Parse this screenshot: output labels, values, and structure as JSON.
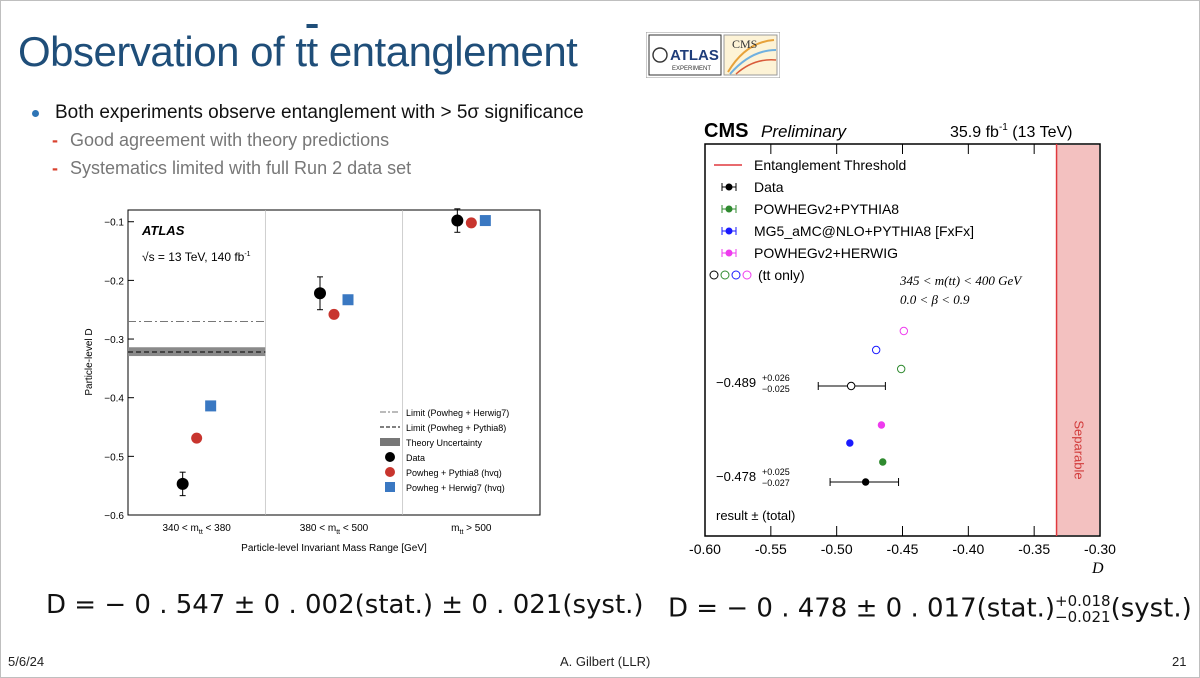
{
  "slide": {
    "title_pre": "Observation of t",
    "title_bar": "t",
    "title_post": " entanglement",
    "logo_left": "ATLAS",
    "logo_left_sub": "EXPERIMENT",
    "logo_right": "CMS",
    "bullet": "Both experiments observe entanglement with > 5σ significance",
    "subbullets": [
      "Good agreement with theory predictions",
      "Systematics limited with full Run 2 data set"
    ],
    "eq_left": "D = − 0 . 547 ± 0 . 002(stat.) ± 0 . 021(syst.)",
    "eq_right_main": "D = − 0 . 478 ± 0 . 017(stat.)",
    "eq_right_up": "+0.018",
    "eq_right_down": "−0.021",
    "eq_right_tail": "(syst.)",
    "footer_left": "5/6/24",
    "footer_center": "A. Gilbert (LLR)",
    "footer_right": "21"
  },
  "chart_data": [
    {
      "type": "scatter",
      "experiment": "ATLAS",
      "label": "ATLAS",
      "energy": "√s = 13 TeV, 140 fb",
      "energy_sup": "-1",
      "xlabel": "Particle-level Invariant Mass Range [GeV]",
      "ylabel": "Particle-level D",
      "categories": [
        "340 < m_tt < 380",
        "380 < m_tt < 500",
        "m_tt > 500"
      ],
      "ylim": [
        -0.6,
        -0.08
      ],
      "yticks": [
        "−0.1",
        "−0.2",
        "−0.3",
        "−0.4",
        "−0.5",
        "−0.6"
      ],
      "series": [
        {
          "name": "Data",
          "color": "#000000",
          "marker": "circle",
          "values": [
            -0.547,
            -0.222,
            -0.098
          ],
          "errors": [
            0.02,
            0.028,
            0.02
          ]
        },
        {
          "name": "Powheg + Pythia8 (hvq)",
          "color": "#c8352e",
          "marker": "circle",
          "values": [
            -0.469,
            -0.258,
            -0.102
          ]
        },
        {
          "name": "Powheg + Herwig7 (hvq)",
          "color": "#3a78c2",
          "marker": "square",
          "values": [
            -0.414,
            -0.233,
            -0.098
          ]
        }
      ],
      "limits": [
        {
          "name": "Limit (Powheg + Herwig7)",
          "style": "dashdot",
          "value": -0.27
        },
        {
          "name": "Limit (Powheg + Pythia8)",
          "style": "dashed",
          "value": -0.322
        }
      ],
      "theory_band": {
        "name": "Theory Uncertainty",
        "low": -0.329,
        "high": -0.314
      },
      "legend_labels": [
        "Limit (Powheg + Herwig7)",
        "Limit (Powheg + Pythia8)",
        "Theory Uncertainty",
        "Data",
        "Powheg + Pythia8 (hvq)",
        "Powheg + Herwig7 (hvq)"
      ],
      "tick_labels_m": [
        "340 < m",
        "tt",
        " < 380",
        "380 < m",
        "tt",
        " < 500",
        "m",
        "tt",
        " > 500"
      ]
    },
    {
      "type": "scatter",
      "experiment": "CMS",
      "label": "CMS",
      "label_sub": "Preliminary",
      "lumi": "35.9 fb",
      "lumi_sup": "-1",
      "lumi_tail": " (13 TeV)",
      "xlabel": "D",
      "xlim": [
        -0.6,
        -0.3
      ],
      "xticks": [
        "-0.60",
        "-0.55",
        "-0.50",
        "-0.45",
        "-0.40",
        "-0.35",
        "-0.30"
      ],
      "xtick_values": [
        -0.6,
        -0.55,
        -0.5,
        -0.45,
        -0.4,
        -0.35,
        -0.3
      ],
      "threshold": {
        "name": "Entanglement Threshold",
        "value": -0.333,
        "region_label": "Separable"
      },
      "legend": [
        {
          "name": "Entanglement Threshold",
          "color": "#e0393e"
        },
        {
          "name": "Data",
          "color": "#000000"
        },
        {
          "name": "POWHEGv2+PYTHIA8",
          "color": "#2f8a2f"
        },
        {
          "name": "MG5_aMC@NLO+PYTHIA8 [FxFx]",
          "color": "#1a1aff"
        },
        {
          "name": "POWHEGv2+HERWIG",
          "color": "#ee3bee"
        }
      ],
      "open_marker_note": "(tt only)",
      "selection": [
        "345 < m(tt) < 400 GeV",
        "0.0 < β < 0.9"
      ],
      "result_label": "result ± (total)",
      "group_open": {
        "data": {
          "value": -0.489,
          "up": 0.026,
          "down": 0.025,
          "text": "−0.489",
          "up_text": "+0.026",
          "down_text": "−0.025"
        },
        "mc": [
          {
            "name": "POWHEGv2+HERWIG",
            "value": -0.449
          },
          {
            "name": "MG5_aMC@NLO+PYTHIA8 [FxFx]",
            "value": -0.47
          },
          {
            "name": "POWHEGv2+PYTHIA8",
            "value": -0.451
          }
        ]
      },
      "group_filled": {
        "data": {
          "value": -0.478,
          "up": 0.025,
          "down": 0.027,
          "text": "−0.478",
          "up_text": "+0.025",
          "down_text": "−0.027"
        },
        "mc": [
          {
            "name": "POWHEGv2+HERWIG",
            "value": -0.466
          },
          {
            "name": "MG5_aMC@NLO+PYTHIA8 [FxFx]",
            "value": -0.49
          },
          {
            "name": "POWHEGv2+PYTHIA8",
            "value": -0.465
          }
        ]
      }
    }
  ]
}
